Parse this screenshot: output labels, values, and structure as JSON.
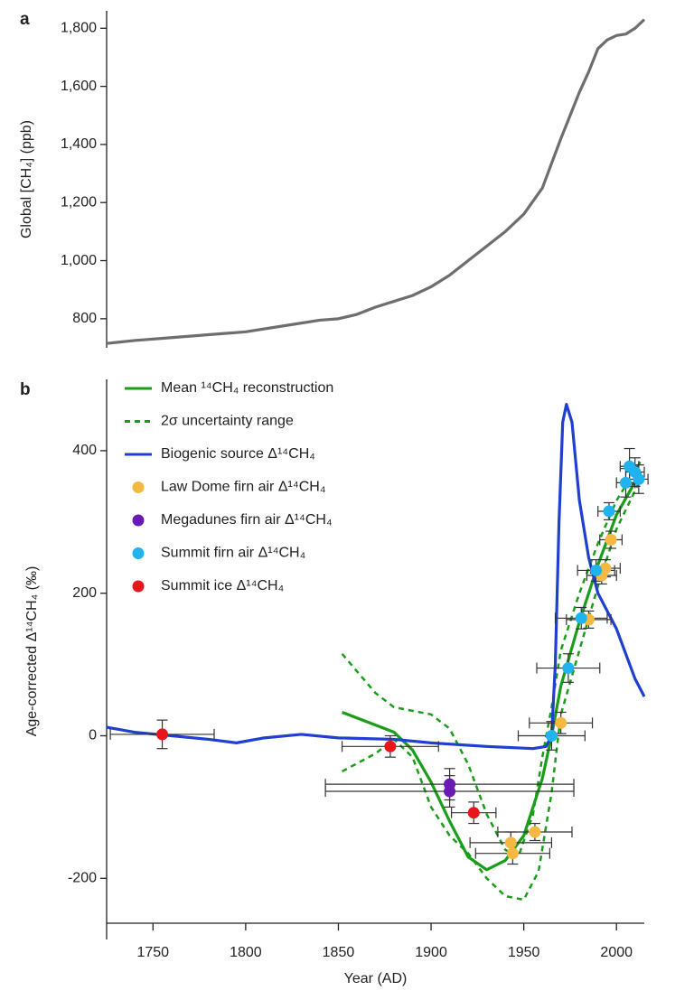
{
  "chart_data": [
    {
      "type": "line",
      "panel": "a",
      "ylabel": "Global [CH₄] (ppb)",
      "xlim": [
        1725,
        2015
      ],
      "ylim": [
        700,
        1860
      ],
      "yticks": [
        800,
        {
          "value": 1000,
          "label": "1,000"
        },
        {
          "value": 1200,
          "label": "1,200"
        },
        {
          "value": 1400,
          "label": "1,400"
        },
        {
          "value": 1600,
          "label": "1,600"
        },
        {
          "value": 1800,
          "label": "1,800"
        }
      ],
      "series": [
        {
          "color": "#6e6e6e",
          "style": "solid",
          "x": [
            1725,
            1740,
            1760,
            1780,
            1800,
            1820,
            1840,
            1850,
            1860,
            1870,
            1880,
            1890,
            1900,
            1910,
            1920,
            1930,
            1940,
            1950,
            1960,
            1970,
            1980,
            1985,
            1990,
            1995,
            2000,
            2005,
            2010,
            2015
          ],
          "values": [
            715,
            725,
            735,
            745,
            755,
            775,
            795,
            800,
            815,
            840,
            860,
            880,
            910,
            950,
            1000,
            1050,
            1100,
            1160,
            1250,
            1420,
            1580,
            1650,
            1730,
            1760,
            1775,
            1780,
            1800,
            1830
          ]
        }
      ]
    },
    {
      "type": "line",
      "panel": "b",
      "ylabel": "Age-corrected Δ¹⁴CH₄ (‰)",
      "xlabel": "Year (AD)",
      "xlim": [
        1725,
        2015
      ],
      "ylim": [
        -263,
        500
      ],
      "xticks": [
        1750,
        1800,
        1850,
        1900,
        1950,
        2000
      ],
      "yticks": [
        -200,
        0,
        200,
        400
      ],
      "series": [
        {
          "name": "Mean ¹⁴CH₄ reconstruction",
          "color": "#1a9e1a",
          "style": "solid",
          "x": [
            1852,
            1880,
            1890,
            1900,
            1910,
            1920,
            1930,
            1940,
            1950,
            1960,
            1965,
            1970,
            1980,
            1990,
            2000,
            2013
          ],
          "values": [
            33,
            5,
            -20,
            -65,
            -120,
            -170,
            -188,
            -175,
            -140,
            -60,
            0,
            70,
            160,
            240,
            310,
            370
          ]
        },
        {
          "name": "2σ uncertainty range",
          "color": "#1a9e1a",
          "style": "dashed",
          "x": [
            1852,
            1870,
            1880,
            1890,
            1900,
            1910,
            1920,
            1930,
            1940,
            1947,
            1955,
            1960,
            1965,
            1970,
            1980,
            1990,
            2000,
            2013
          ],
          "values": [
            115,
            60,
            40,
            35,
            30,
            10,
            -40,
            -110,
            -160,
            -170,
            -110,
            -30,
            40,
            120,
            200,
            270,
            330,
            385
          ]
        },
        {
          "color": "#1a9e1a",
          "style": "dashed",
          "x": [
            1852,
            1870,
            1880,
            1890,
            1900,
            1910,
            1920,
            1930,
            1940,
            1950,
            1958,
            1965,
            1970,
            1980,
            1990,
            2000,
            2013
          ],
          "values": [
            -50,
            -25,
            -5,
            -30,
            -100,
            -140,
            -165,
            -200,
            -225,
            -230,
            -190,
            -80,
            30,
            120,
            210,
            290,
            360
          ]
        },
        {
          "name": "Biogenic source Δ¹⁴CH₄",
          "color": "#1f3fd1",
          "style": "solid",
          "x": [
            1725,
            1740,
            1760,
            1780,
            1795,
            1810,
            1830,
            1850,
            1880,
            1900,
            1930,
            1955,
            1962,
            1965,
            1967,
            1969,
            1971,
            1973,
            1976,
            1980,
            1985,
            1990,
            2000,
            2010,
            2015
          ],
          "values": [
            12,
            5,
            0,
            -5,
            -10,
            -3,
            2,
            -3,
            -5,
            -10,
            -15,
            -18,
            -15,
            0,
            100,
            300,
            440,
            465,
            440,
            330,
            250,
            200,
            150,
            80,
            55
          ]
        },
        {
          "name": "Law Dome firn air Δ¹⁴CH₄",
          "color": "#f5b942",
          "style": "points",
          "x": [
            1943,
            1944,
            1956,
            1970,
            1985,
            1992,
            1994,
            1997
          ],
          "values": [
            -150,
            -165,
            -135,
            18,
            163,
            225,
            235,
            275
          ],
          "xerr": [
            22,
            20,
            20,
            17,
            12,
            8,
            8,
            6
          ],
          "yerr": [
            15,
            15,
            12,
            15,
            12,
            12,
            12,
            12
          ]
        },
        {
          "name": "Megadunes firn air Δ¹⁴CH₄",
          "color": "#6a1bb5",
          "style": "points",
          "x": [
            1910,
            1910
          ],
          "values": [
            -68,
            -78
          ],
          "xerr": [
            67,
            67
          ],
          "yerr": [
            22,
            22
          ]
        },
        {
          "name": "Summit firn air Δ¹⁴CH₄",
          "color": "#1fb3f0",
          "style": "points",
          "x": [
            1965,
            1974,
            1981,
            1989,
            1996,
            2005,
            2007,
            2010,
            2012
          ],
          "values": [
            0,
            95,
            165,
            232,
            315,
            355,
            378,
            370,
            360
          ],
          "xerr": [
            18,
            17,
            14,
            10,
            6,
            5,
            5,
            5,
            5
          ],
          "yerr": [
            20,
            20,
            15,
            15,
            12,
            20,
            25,
            20,
            20
          ]
        },
        {
          "name": "Summit ice Δ¹⁴CH₄",
          "color": "#e8161b",
          "style": "points",
          "x": [
            1755,
            1878,
            1923
          ],
          "values": [
            2,
            -15,
            -108
          ],
          "xerr": [
            28,
            26,
            12
          ],
          "yerr": [
            20,
            15,
            15
          ]
        }
      ]
    }
  ]
}
